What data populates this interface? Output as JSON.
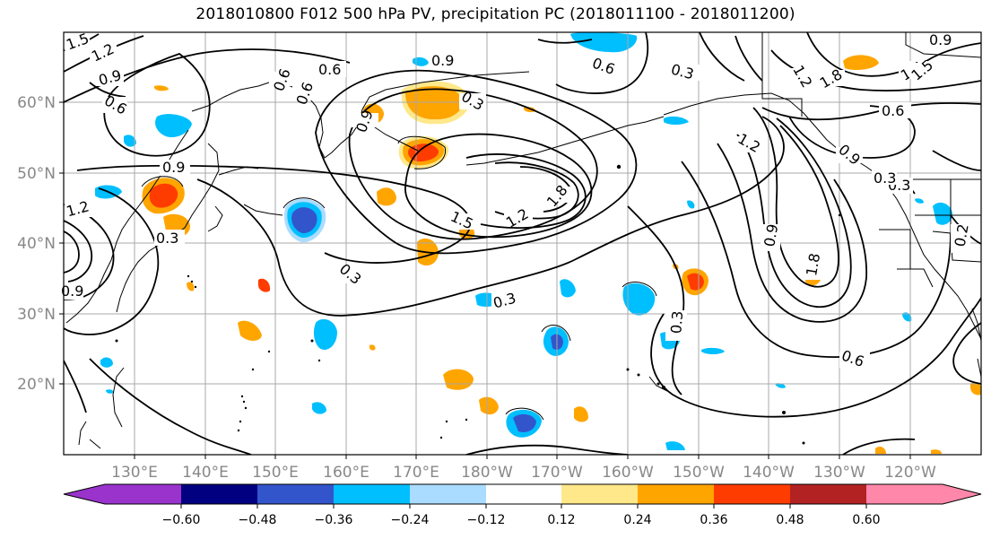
{
  "title": "2018010800 F012 500 hPa PV, precipitation PC (2018011100 - 2018011200)",
  "lon_labels": [
    "130°E",
    "140°E",
    "150°E",
    "160°E",
    "170°E",
    "180°W",
    "170°W",
    "160°W",
    "150°W",
    "140°W",
    "130°W",
    "120°W"
  ],
  "lat_labels": [
    "60°N",
    "50°N",
    "40°N",
    "30°N",
    "20°N"
  ],
  "colorbar": {
    "colors": [
      "#9933cc",
      "#000080",
      "#3355cc",
      "#00bfff",
      "#aadcff",
      "#ffffff",
      "#ffe88a",
      "#ffa500",
      "#ff3c00",
      "#b22222",
      "#ff88aa"
    ],
    "tick_labels": [
      "−0.60",
      "−0.48",
      "−0.36",
      "−0.24",
      "−0.12",
      "0.12",
      "0.24",
      "0.36",
      "0.48",
      "0.60"
    ]
  },
  "contour_labels": [
    "1.5",
    "1.2",
    "0.9",
    "0.6",
    "0.6",
    "0.9",
    "0.3",
    "0.6",
    "0.3",
    "0.9",
    "0.6",
    "1.2",
    "1.8",
    "1.5",
    "1.2",
    "0.6",
    "0.9",
    "0.9",
    "0.3",
    "0.3",
    "1.2",
    "0.3",
    "1.8",
    "1.5",
    "1.2",
    "0.3",
    "0.6",
    "0.3",
    "0.9",
    "1.5",
    "1.8",
    "0.3",
    "0.6",
    "0.2",
    "0.9",
    "0.9"
  ]
}
